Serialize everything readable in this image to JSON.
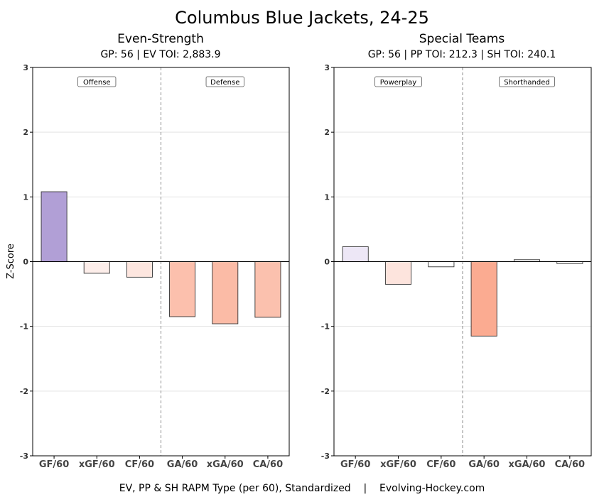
{
  "title": "Columbus Blue Jackets, 24-25",
  "footer": {
    "left": "EV, PP & SH RAPM Type (per 60), Standardized",
    "separator": "|",
    "right": "Evolving-Hockey.com"
  },
  "chart_data": [
    {
      "type": "bar",
      "title": "Even-Strength",
      "subtitle": "GP: 56 | EV TOI: 2,883.9",
      "ylabel": "Z-Score",
      "xlabel": "",
      "ylim": [
        -3,
        3
      ],
      "yticks": [
        -3,
        -2,
        -1,
        0,
        1,
        2,
        3
      ],
      "grid": "horizontal",
      "categories": [
        "GF/60",
        "xGF/60",
        "CF/60",
        "GA/60",
        "xGA/60",
        "CA/60"
      ],
      "values": [
        1.08,
        -0.18,
        -0.24,
        -0.85,
        -0.96,
        -0.86
      ],
      "colors": [
        "#b19fd6",
        "#fdeeea",
        "#fde6df",
        "#fcc0ad",
        "#fbbba6",
        "#fbc1ae"
      ],
      "groups": [
        {
          "label": "Offense",
          "categories": [
            "GF/60",
            "xGF/60",
            "CF/60"
          ]
        },
        {
          "label": "Defense",
          "categories": [
            "GA/60",
            "xGA/60",
            "CA/60"
          ]
        }
      ]
    },
    {
      "type": "bar",
      "title": "Special Teams",
      "subtitle": "GP: 56 | PP TOI: 212.3 | SH TOI: 240.1",
      "ylabel": "",
      "xlabel": "",
      "ylim": [
        -3,
        3
      ],
      "yticks": [
        -3,
        -2,
        -1,
        0,
        1,
        2,
        3
      ],
      "grid": "horizontal",
      "categories": [
        "GF/60",
        "xGF/60",
        "CF/60",
        "GA/60",
        "xGA/60",
        "CA/60"
      ],
      "values": [
        0.23,
        -0.35,
        -0.08,
        -1.15,
        0.03,
        -0.03
      ],
      "colors": [
        "#ede7f6",
        "#fde4dd",
        "#ffffff",
        "#fbab91",
        "#fafafa",
        "#ffffff"
      ],
      "groups": [
        {
          "label": "Powerplay",
          "categories": [
            "GF/60",
            "xGF/60",
            "CF/60"
          ]
        },
        {
          "label": "Shorthanded",
          "categories": [
            "GA/60",
            "xGA/60",
            "CA/60"
          ]
        }
      ]
    }
  ]
}
